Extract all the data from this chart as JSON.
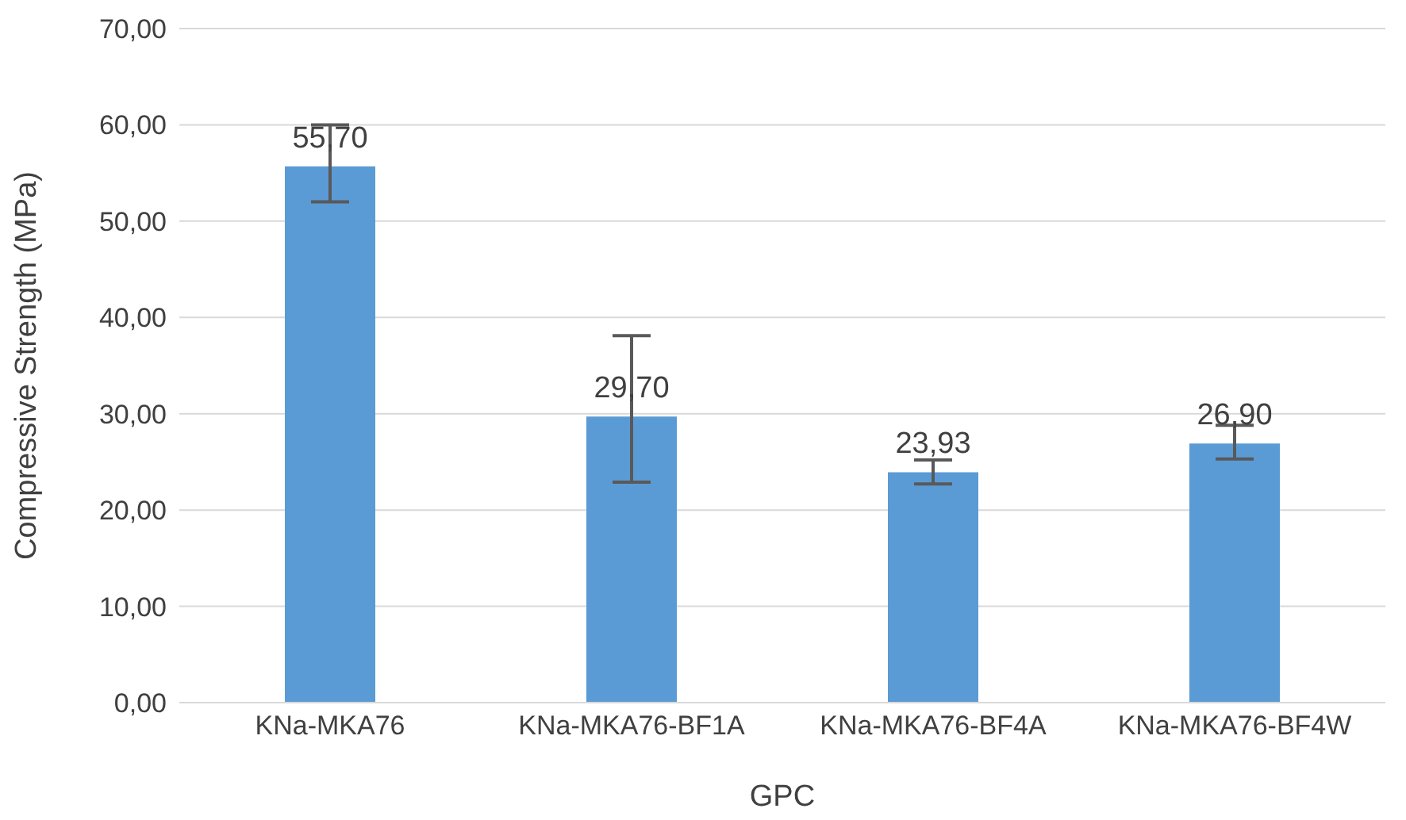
{
  "chart_data": {
    "type": "bar",
    "xlabel": "GPC",
    "ylabel": "Compressive Strength (MPa)",
    "categories": [
      "KNa-MKA76",
      "KNa-MKA76-BF1A",
      "KNa-MKA76-BF4A",
      "KNa-MKA76-BF4W"
    ],
    "values": [
      55.7,
      29.7,
      23.93,
      26.9
    ],
    "value_labels": [
      "55,70",
      "29,70",
      "23,93",
      "26,90"
    ],
    "errors": [
      [
        52.0,
        60.0
      ],
      [
        22.9,
        38.1
      ],
      [
        22.7,
        25.2
      ],
      [
        25.3,
        28.8
      ]
    ],
    "color": "#5b9bd5",
    "ylim": [
      0,
      70
    ],
    "yticks": [
      {
        "value": 0,
        "label": "0,00"
      },
      {
        "value": 10,
        "label": "10,00"
      },
      {
        "value": 20,
        "label": "20,00"
      },
      {
        "value": 30,
        "label": "30,00"
      },
      {
        "value": 40,
        "label": "40,00"
      },
      {
        "value": 50,
        "label": "50,00"
      },
      {
        "value": 60,
        "label": "60,00"
      },
      {
        "value": 70,
        "label": "70,00"
      }
    ],
    "grid": "y",
    "legend": false
  }
}
